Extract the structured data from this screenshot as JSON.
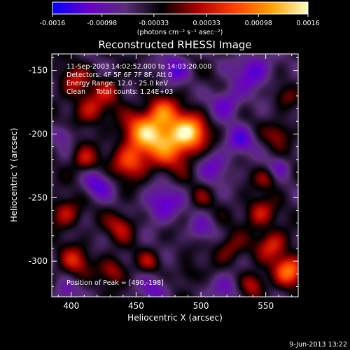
{
  "chart_data": {
    "type": "heatmap",
    "title": "Reconstructed RHESSI Image",
    "xlabel": "Heliocentric X (arcsec)",
    "ylabel": "Heliocentric Y (arcsec)",
    "xlim": [
      385,
      575
    ],
    "ylim": [
      -328,
      -137
    ],
    "x_ticks": [
      400,
      450,
      500,
      550
    ],
    "y_ticks": [
      -150,
      -200,
      -250,
      -300
    ],
    "colorbar": {
      "range": [
        -0.0016,
        0.0016
      ],
      "ticks": [
        "-0.0016",
        "-0.00098",
        "-0.00033",
        "0.00033",
        "0.00098",
        "0.0016"
      ],
      "unit_label": "(photons cm⁻² s⁻¹ asec⁻²)",
      "colors": [
        "#0000ff",
        "#6a00c8",
        "#5a2e7a",
        "#000000",
        "#b00000",
        "#ff4000",
        "#ffa000",
        "#ffffc8"
      ]
    },
    "annotations": [
      "11-Sep-2003 14:02:52.000 to 14:03:20.000",
      "Detectors: 4F 5F 6F 7F 8F, Att 0",
      "Energy Range: 12.0 - 25.0 keV",
      "Clean     Total counts: 1.24E+03"
    ],
    "peak_label": "Position of Peak = [490,-198]",
    "peak": [
      490,
      -198
    ],
    "sources": [
      {
        "x": 476,
        "y": -205,
        "v": 0.00145,
        "s": 14
      },
      {
        "x": 455,
        "y": -198,
        "v": 0.0012,
        "s": 11
      },
      {
        "x": 492,
        "y": -198,
        "v": 0.0012,
        "s": 9
      },
      {
        "x": 445,
        "y": -222,
        "v": 0.00105,
        "s": 9
      },
      {
        "x": 470,
        "y": -182,
        "v": 0.0009,
        "s": 8
      },
      {
        "x": 415,
        "y": -180,
        "v": 0.0008,
        "s": 9
      },
      {
        "x": 410,
        "y": -220,
        "v": 0.00075,
        "s": 7
      },
      {
        "x": 402,
        "y": -158,
        "v": 0.0007,
        "s": 8
      },
      {
        "x": 430,
        "y": -165,
        "v": 0.0006,
        "s": 7
      },
      {
        "x": 395,
        "y": -262,
        "v": 0.00075,
        "s": 8
      },
      {
        "x": 438,
        "y": -272,
        "v": 0.0007,
        "s": 8
      },
      {
        "x": 402,
        "y": -300,
        "v": 0.0008,
        "s": 8
      },
      {
        "x": 432,
        "y": -307,
        "v": 0.0007,
        "s": 7
      },
      {
        "x": 460,
        "y": -300,
        "v": 0.00055,
        "s": 6
      },
      {
        "x": 545,
        "y": -262,
        "v": 0.0008,
        "s": 8
      },
      {
        "x": 522,
        "y": -290,
        "v": 0.0006,
        "s": 8
      },
      {
        "x": 555,
        "y": -287,
        "v": 0.0009,
        "s": 8
      },
      {
        "x": 568,
        "y": -307,
        "v": 0.0013,
        "s": 8
      },
      {
        "x": 540,
        "y": -318,
        "v": 0.0008,
        "s": 7
      },
      {
        "x": 560,
        "y": -200,
        "v": 0.0006,
        "s": 7
      },
      {
        "x": 550,
        "y": -235,
        "v": 0.0005,
        "s": 6
      },
      {
        "x": 500,
        "y": -250,
        "v": 0.00035,
        "s": 6
      },
      {
        "x": 490,
        "y": -310,
        "v": 0.0004,
        "s": 6
      },
      {
        "x": 565,
        "y": -170,
        "v": 0.0004,
        "s": 6
      },
      {
        "x": 540,
        "y": -150,
        "v": -0.0008,
        "s": 10
      },
      {
        "x": 520,
        "y": -175,
        "v": -0.0007,
        "s": 9
      },
      {
        "x": 470,
        "y": -255,
        "v": -0.0008,
        "s": 10
      },
      {
        "x": 420,
        "y": -240,
        "v": -0.0007,
        "s": 8
      },
      {
        "x": 510,
        "y": -225,
        "v": -0.0006,
        "s": 9
      },
      {
        "x": 480,
        "y": -148,
        "v": -0.0007,
        "s": 8
      },
      {
        "x": 530,
        "y": -205,
        "v": -0.0007,
        "s": 8
      },
      {
        "x": 465,
        "y": -320,
        "v": -0.0006,
        "s": 8
      },
      {
        "x": 395,
        "y": -325,
        "v": -0.0005,
        "s": 7
      },
      {
        "x": 520,
        "y": -320,
        "v": -0.0006,
        "s": 8
      },
      {
        "x": 395,
        "y": -200,
        "v": -0.0005,
        "s": 6
      },
      {
        "x": 500,
        "y": -275,
        "v": -0.0005,
        "s": 7
      },
      {
        "x": 560,
        "y": -225,
        "v": -0.0005,
        "s": 6
      }
    ]
  },
  "footer": {
    "date": "9-Jun-2013 13:22"
  }
}
